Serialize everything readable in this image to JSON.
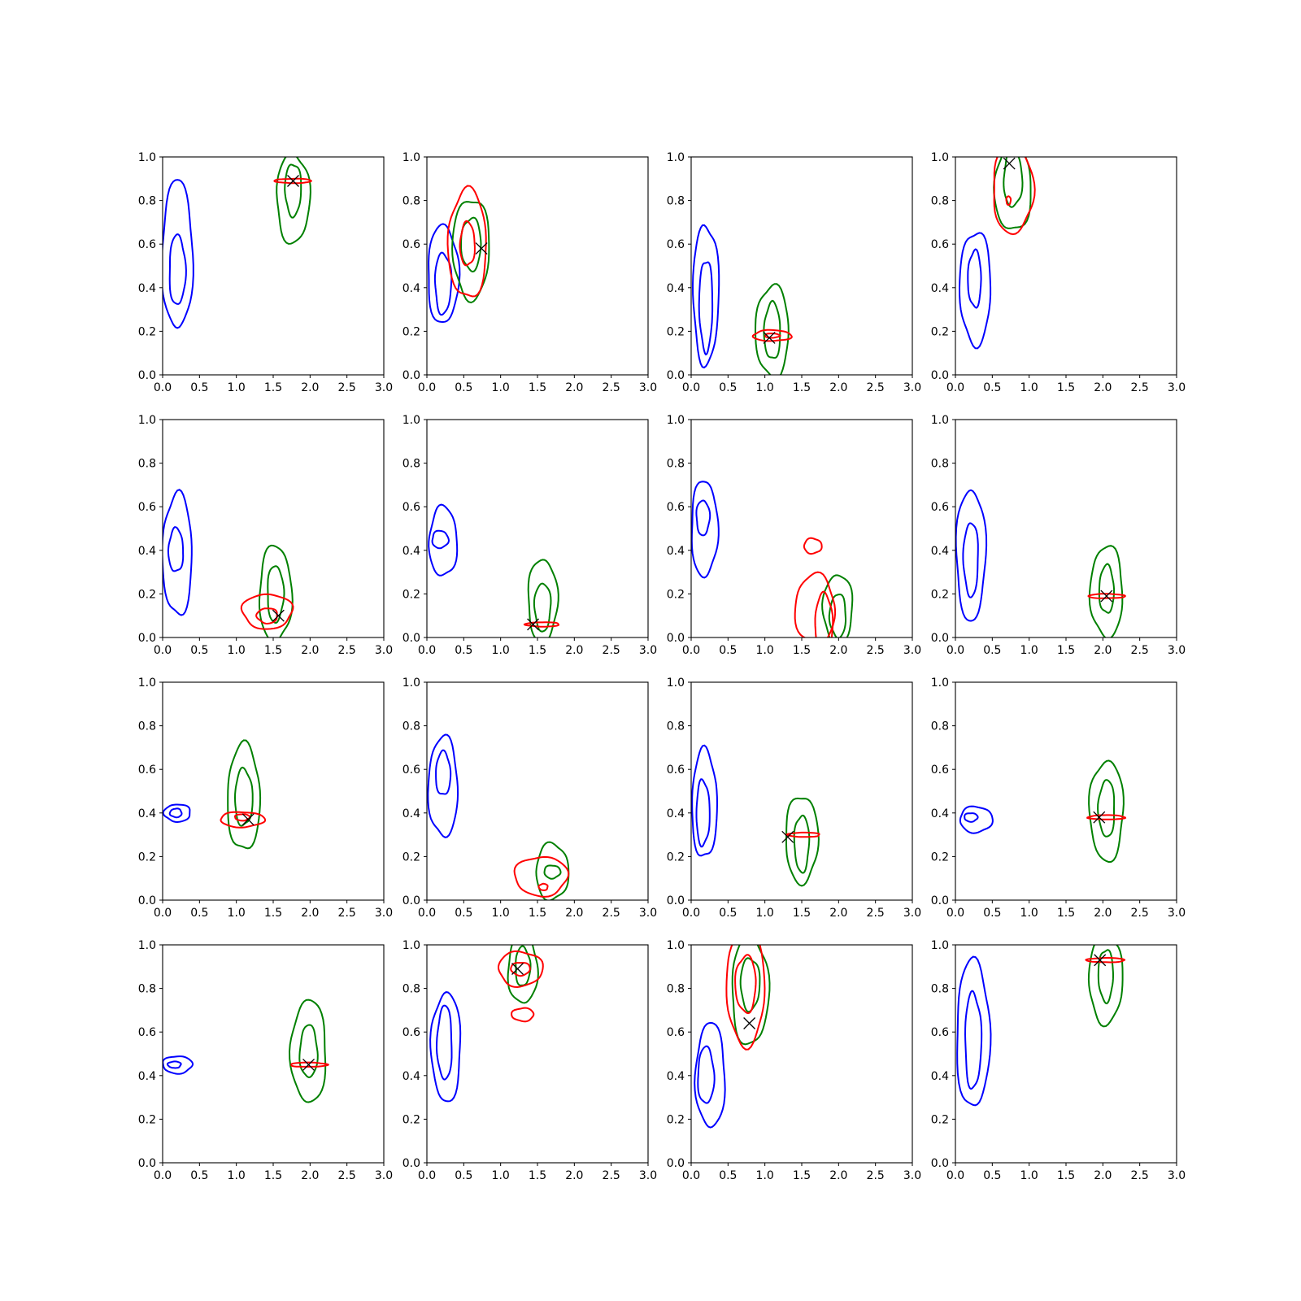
{
  "chart_data": {
    "type": "contour",
    "layout": {
      "rows": 4,
      "cols": 4
    },
    "xlim": [
      0.0,
      3.0
    ],
    "ylim": [
      0.0,
      1.0
    ],
    "xticks": [
      "0.0",
      "0.5",
      "1.0",
      "1.5",
      "2.0",
      "2.5",
      "3.0"
    ],
    "yticks": [
      "0.0",
      "0.2",
      "0.4",
      "0.6",
      "0.8",
      "1.0"
    ],
    "colors": {
      "blue": "#0000ff",
      "green": "#008000",
      "red": "#ff0000",
      "marker": "#000000"
    },
    "grid": false,
    "panels": [
      {
        "blue": [
          {
            "cx": 0.2,
            "cy": 0.55,
            "w": 0.42,
            "h": 0.68
          },
          {
            "cx": 0.2,
            "cy": 0.48,
            "w": 0.22,
            "h": 0.32
          }
        ],
        "green": [
          {
            "cx": 1.77,
            "cy": 0.81,
            "w": 0.45,
            "h": 0.41
          },
          {
            "cx": 1.77,
            "cy": 0.85,
            "w": 0.22,
            "h": 0.24
          }
        ],
        "red": [
          {
            "cx": 1.77,
            "cy": 0.89,
            "w": 0.5,
            "h": 0.02
          }
        ],
        "marker": {
          "x": 1.77,
          "y": 0.89
        }
      },
      {
        "blue": [
          {
            "cx": 0.22,
            "cy": 0.46,
            "w": 0.42,
            "h": 0.45
          },
          {
            "cx": 0.22,
            "cy": 0.42,
            "w": 0.22,
            "h": 0.28
          }
        ],
        "green": [
          {
            "cx": 0.6,
            "cy": 0.58,
            "w": 0.5,
            "h": 0.46
          },
          {
            "cx": 0.6,
            "cy": 0.6,
            "w": 0.27,
            "h": 0.24
          }
        ],
        "red": [
          {
            "cx": 0.55,
            "cy": 0.6,
            "w": 0.52,
            "h": 0.5
          },
          {
            "cx": 0.55,
            "cy": 0.6,
            "w": 0.2,
            "h": 0.2
          }
        ],
        "marker": {
          "x": 0.74,
          "y": 0.58
        }
      },
      {
        "blue": [
          {
            "cx": 0.2,
            "cy": 0.37,
            "w": 0.35,
            "h": 0.64
          },
          {
            "cx": 0.2,
            "cy": 0.32,
            "w": 0.18,
            "h": 0.42
          }
        ],
        "green": [
          {
            "cx": 1.1,
            "cy": 0.2,
            "w": 0.45,
            "h": 0.42
          },
          {
            "cx": 1.1,
            "cy": 0.2,
            "w": 0.22,
            "h": 0.26
          }
        ],
        "red": [
          {
            "cx": 1.1,
            "cy": 0.18,
            "w": 0.52,
            "h": 0.05
          },
          {
            "cx": 1.1,
            "cy": 0.18,
            "w": 0.2,
            "h": 0.02
          }
        ],
        "marker": {
          "x": 1.06,
          "y": 0.17
        }
      },
      {
        "blue": [
          {
            "cx": 0.27,
            "cy": 0.4,
            "w": 0.42,
            "h": 0.52
          },
          {
            "cx": 0.26,
            "cy": 0.44,
            "w": 0.18,
            "h": 0.26
          }
        ],
        "green": [
          {
            "cx": 0.78,
            "cy": 0.86,
            "w": 0.5,
            "h": 0.4
          },
          {
            "cx": 0.78,
            "cy": 0.9,
            "w": 0.25,
            "h": 0.26
          }
        ],
        "red": [
          {
            "cx": 0.78,
            "cy": 0.85,
            "w": 0.55,
            "h": 0.4
          },
          {
            "cx": 0.72,
            "cy": 0.8,
            "w": 0.06,
            "h": 0.04
          }
        ],
        "marker": {
          "x": 0.73,
          "y": 0.97
        }
      },
      {
        "blue": [
          {
            "cx": 0.2,
            "cy": 0.38,
            "w": 0.4,
            "h": 0.56
          },
          {
            "cx": 0.18,
            "cy": 0.4,
            "w": 0.2,
            "h": 0.2
          }
        ],
        "green": [
          {
            "cx": 1.53,
            "cy": 0.2,
            "w": 0.44,
            "h": 0.44
          },
          {
            "cx": 1.53,
            "cy": 0.2,
            "w": 0.22,
            "h": 0.26
          }
        ],
        "red": [
          {
            "cx": 1.42,
            "cy": 0.12,
            "w": 0.68,
            "h": 0.16
          },
          {
            "cx": 1.42,
            "cy": 0.1,
            "w": 0.28,
            "h": 0.07
          }
        ],
        "marker": {
          "x": 1.57,
          "y": 0.1
        }
      },
      {
        "blue": [
          {
            "cx": 0.22,
            "cy": 0.44,
            "w": 0.38,
            "h": 0.32
          },
          {
            "cx": 0.18,
            "cy": 0.45,
            "w": 0.22,
            "h": 0.08
          }
        ],
        "green": [
          {
            "cx": 1.57,
            "cy": 0.17,
            "w": 0.4,
            "h": 0.38
          },
          {
            "cx": 1.57,
            "cy": 0.14,
            "w": 0.22,
            "h": 0.22
          }
        ],
        "red": [
          {
            "cx": 1.57,
            "cy": 0.06,
            "w": 0.46,
            "h": 0.02
          }
        ],
        "marker": {
          "x": 1.44,
          "y": 0.06
        }
      },
      {
        "blue": [
          {
            "cx": 0.18,
            "cy": 0.5,
            "w": 0.36,
            "h": 0.44
          },
          {
            "cx": 0.16,
            "cy": 0.55,
            "w": 0.18,
            "h": 0.16
          }
        ],
        "green": [
          {
            "cx": 1.99,
            "cy": 0.13,
            "w": 0.4,
            "h": 0.32
          },
          {
            "cx": 1.99,
            "cy": 0.1,
            "w": 0.22,
            "h": 0.2
          }
        ],
        "red": [
          {
            "cx": 1.68,
            "cy": 0.13,
            "w": 0.54,
            "h": 0.32
          },
          {
            "cx": 1.8,
            "cy": 0.07,
            "w": 0.24,
            "h": 0.26
          },
          {
            "cx": 1.65,
            "cy": 0.42,
            "w": 0.24,
            "h": 0.07
          }
        ],
        "marker": null
      },
      {
        "blue": [
          {
            "cx": 0.21,
            "cy": 0.38,
            "w": 0.4,
            "h": 0.6
          },
          {
            "cx": 0.21,
            "cy": 0.36,
            "w": 0.2,
            "h": 0.34
          }
        ],
        "green": [
          {
            "cx": 2.05,
            "cy": 0.21,
            "w": 0.44,
            "h": 0.42
          },
          {
            "cx": 2.05,
            "cy": 0.22,
            "w": 0.2,
            "h": 0.22
          }
        ],
        "red": [
          {
            "cx": 2.05,
            "cy": 0.19,
            "w": 0.5,
            "h": 0.02
          }
        ],
        "marker": {
          "x": 2.05,
          "y": 0.19
        }
      },
      {
        "blue": [
          {
            "cx": 0.2,
            "cy": 0.4,
            "w": 0.36,
            "h": 0.08
          },
          {
            "cx": 0.18,
            "cy": 0.4,
            "w": 0.16,
            "h": 0.04
          }
        ],
        "green": [
          {
            "cx": 1.1,
            "cy": 0.47,
            "w": 0.44,
            "h": 0.49
          },
          {
            "cx": 1.1,
            "cy": 0.47,
            "w": 0.24,
            "h": 0.26
          }
        ],
        "red": [
          {
            "cx": 1.08,
            "cy": 0.37,
            "w": 0.6,
            "h": 0.07
          },
          {
            "cx": 1.08,
            "cy": 0.38,
            "w": 0.2,
            "h": 0.03
          }
        ],
        "marker": {
          "x": 1.16,
          "y": 0.37
        }
      },
      {
        "blue": [
          {
            "cx": 0.22,
            "cy": 0.52,
            "w": 0.4,
            "h": 0.46
          },
          {
            "cx": 0.22,
            "cy": 0.58,
            "w": 0.2,
            "h": 0.2
          }
        ],
        "green": [
          {
            "cx": 1.7,
            "cy": 0.13,
            "w": 0.44,
            "h": 0.26
          },
          {
            "cx": 1.7,
            "cy": 0.13,
            "w": 0.22,
            "h": 0.06
          }
        ],
        "red": [
          {
            "cx": 1.55,
            "cy": 0.11,
            "w": 0.72,
            "h": 0.18
          },
          {
            "cx": 1.58,
            "cy": 0.06,
            "w": 0.12,
            "h": 0.03
          }
        ],
        "marker": null
      },
      {
        "blue": [
          {
            "cx": 0.18,
            "cy": 0.44,
            "w": 0.34,
            "h": 0.5
          },
          {
            "cx": 0.16,
            "cy": 0.4,
            "w": 0.18,
            "h": 0.3
          }
        ],
        "green": [
          {
            "cx": 1.5,
            "cy": 0.28,
            "w": 0.44,
            "h": 0.4
          },
          {
            "cx": 1.5,
            "cy": 0.26,
            "w": 0.2,
            "h": 0.26
          }
        ],
        "red": [
          {
            "cx": 1.53,
            "cy": 0.3,
            "w": 0.44,
            "h": 0.02
          }
        ],
        "marker": {
          "x": 1.31,
          "y": 0.29
        }
      },
      {
        "blue": [
          {
            "cx": 0.28,
            "cy": 0.37,
            "w": 0.44,
            "h": 0.12
          },
          {
            "cx": 0.21,
            "cy": 0.38,
            "w": 0.18,
            "h": 0.04
          }
        ],
        "green": [
          {
            "cx": 2.05,
            "cy": 0.41,
            "w": 0.46,
            "h": 0.46
          },
          {
            "cx": 2.05,
            "cy": 0.42,
            "w": 0.22,
            "h": 0.26
          }
        ],
        "red": [
          {
            "cx": 2.05,
            "cy": 0.38,
            "w": 0.5,
            "h": 0.02
          }
        ],
        "marker": {
          "x": 1.95,
          "y": 0.38
        }
      },
      {
        "blue": [
          {
            "cx": 0.2,
            "cy": 0.45,
            "w": 0.4,
            "h": 0.08
          },
          {
            "cx": 0.16,
            "cy": 0.45,
            "w": 0.18,
            "h": 0.03
          }
        ],
        "green": [
          {
            "cx": 1.98,
            "cy": 0.51,
            "w": 0.48,
            "h": 0.47
          },
          {
            "cx": 1.98,
            "cy": 0.51,
            "w": 0.24,
            "h": 0.24
          }
        ],
        "red": [
          {
            "cx": 1.98,
            "cy": 0.45,
            "w": 0.5,
            "h": 0.02
          }
        ],
        "marker": {
          "x": 1.98,
          "y": 0.45
        }
      },
      {
        "blue": [
          {
            "cx": 0.26,
            "cy": 0.53,
            "w": 0.4,
            "h": 0.5
          },
          {
            "cx": 0.24,
            "cy": 0.55,
            "w": 0.2,
            "h": 0.34
          }
        ],
        "green": [
          {
            "cx": 1.3,
            "cy": 0.89,
            "w": 0.4,
            "h": 0.32
          },
          {
            "cx": 1.3,
            "cy": 0.9,
            "w": 0.2,
            "h": 0.18
          }
        ],
        "red": [
          {
            "cx": 1.27,
            "cy": 0.89,
            "w": 0.6,
            "h": 0.16
          },
          {
            "cx": 1.27,
            "cy": 0.89,
            "w": 0.26,
            "h": 0.06
          },
          {
            "cx": 1.3,
            "cy": 0.68,
            "w": 0.3,
            "h": 0.06
          }
        ],
        "marker": {
          "x": 1.23,
          "y": 0.89
        }
      },
      {
        "blue": [
          {
            "cx": 0.26,
            "cy": 0.4,
            "w": 0.4,
            "h": 0.48
          },
          {
            "cx": 0.2,
            "cy": 0.4,
            "w": 0.22,
            "h": 0.26
          }
        ],
        "green": [
          {
            "cx": 0.8,
            "cy": 0.79,
            "w": 0.5,
            "h": 0.5
          },
          {
            "cx": 0.8,
            "cy": 0.82,
            "w": 0.26,
            "h": 0.24
          }
        ],
        "red": [
          {
            "cx": 0.74,
            "cy": 0.8,
            "w": 0.52,
            "h": 0.52
          },
          {
            "cx": 0.74,
            "cy": 0.82,
            "w": 0.28,
            "h": 0.26
          }
        ],
        "marker": {
          "x": 0.79,
          "y": 0.64
        }
      },
      {
        "blue": [
          {
            "cx": 0.24,
            "cy": 0.59,
            "w": 0.45,
            "h": 0.68
          },
          {
            "cx": 0.24,
            "cy": 0.56,
            "w": 0.22,
            "h": 0.44
          }
        ],
        "green": [
          {
            "cx": 2.04,
            "cy": 0.84,
            "w": 0.46,
            "h": 0.4
          },
          {
            "cx": 2.04,
            "cy": 0.86,
            "w": 0.2,
            "h": 0.24
          }
        ],
        "red": [
          {
            "cx": 2.04,
            "cy": 0.93,
            "w": 0.52,
            "h": 0.02
          }
        ],
        "marker": {
          "x": 1.96,
          "y": 0.93
        }
      }
    ]
  }
}
